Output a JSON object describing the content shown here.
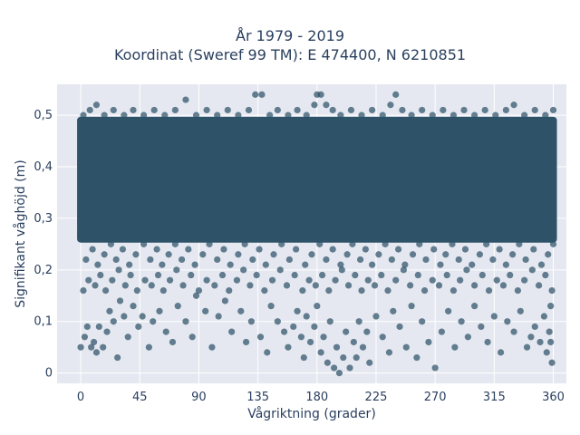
{
  "chart_data": {
    "type": "scatter",
    "title": "År 1979 - 2019",
    "subtitle": "Koordinat (Sweref 99 TM): E 474400, N 6210851",
    "xlabel": "Vågriktning (grader)",
    "ylabel": "Signifikant våghöjd (m)",
    "xlim": [
      -18,
      370
    ],
    "ylim": [
      -0.02,
      0.56
    ],
    "xticks": [
      0,
      45,
      90,
      135,
      180,
      225,
      270,
      315,
      360
    ],
    "xtick_labels": [
      "0",
      "45",
      "90",
      "135",
      "180",
      "225",
      "270",
      "315",
      "360"
    ],
    "yticks": [
      0,
      0.1,
      0.2,
      0.3,
      0.4,
      0.5
    ],
    "ytick_labels": [
      "0",
      "0,1",
      "0,2",
      "0,3",
      "0,4",
      "0,5"
    ],
    "grid": true,
    "legend": false,
    "marker_color": "#2e5268",
    "plot_background": "#e5e8f0",
    "dense_band": {
      "x": [
        0,
        360
      ],
      "y": [
        0.26,
        0.49
      ]
    },
    "points": [
      [
        0,
        0.05
      ],
      [
        3,
        0.07
      ],
      [
        5,
        0.09
      ],
      [
        8,
        0.05
      ],
      [
        10,
        0.06
      ],
      [
        12,
        0.04
      ],
      [
        14,
        0.09
      ],
      [
        17,
        0.05
      ],
      [
        20,
        0.08
      ],
      [
        22,
        0.12
      ],
      [
        25,
        0.1
      ],
      [
        28,
        0.03
      ],
      [
        30,
        0.14
      ],
      [
        33,
        0.11
      ],
      [
        36,
        0.07
      ],
      [
        40,
        0.13
      ],
      [
        44,
        0.09
      ],
      [
        47,
        0.11
      ],
      [
        52,
        0.05
      ],
      [
        55,
        0.1
      ],
      [
        60,
        0.12
      ],
      [
        65,
        0.08
      ],
      [
        70,
        0.06
      ],
      [
        74,
        0.13
      ],
      [
        80,
        0.1
      ],
      [
        85,
        0.07
      ],
      [
        88,
        0.15
      ],
      [
        95,
        0.12
      ],
      [
        100,
        0.05
      ],
      [
        105,
        0.11
      ],
      [
        110,
        0.14
      ],
      [
        115,
        0.08
      ],
      [
        122,
        0.12
      ],
      [
        126,
        0.06
      ],
      [
        130,
        0.1
      ],
      [
        137,
        0.07
      ],
      [
        142,
        0.04
      ],
      [
        145,
        0.13
      ],
      [
        150,
        0.1
      ],
      [
        155,
        0.08
      ],
      [
        158,
        0.05
      ],
      [
        162,
        0.09
      ],
      [
        165,
        0.12
      ],
      [
        168,
        0.07
      ],
      [
        170,
        0.03
      ],
      [
        172,
        0.11
      ],
      [
        175,
        0.06
      ],
      [
        178,
        0.09
      ],
      [
        180,
        0.13
      ],
      [
        183,
        0.04
      ],
      [
        185,
        0.07
      ],
      [
        188,
        0.02
      ],
      [
        190,
        0.1
      ],
      [
        193,
        0.01
      ],
      [
        195,
        0.05
      ],
      [
        197,
        0.0
      ],
      [
        200,
        0.03
      ],
      [
        202,
        0.08
      ],
      [
        205,
        0.01
      ],
      [
        208,
        0.06
      ],
      [
        210,
        0.03
      ],
      [
        212,
        0.1
      ],
      [
        215,
        0.05
      ],
      [
        218,
        0.08
      ],
      [
        220,
        0.02
      ],
      [
        225,
        0.11
      ],
      [
        230,
        0.07
      ],
      [
        235,
        0.04
      ],
      [
        238,
        0.12
      ],
      [
        243,
        0.09
      ],
      [
        248,
        0.05
      ],
      [
        252,
        0.13
      ],
      [
        256,
        0.03
      ],
      [
        260,
        0.1
      ],
      [
        265,
        0.06
      ],
      [
        270,
        0.01
      ],
      [
        275,
        0.08
      ],
      [
        280,
        0.12
      ],
      [
        285,
        0.05
      ],
      [
        290,
        0.1
      ],
      [
        295,
        0.07
      ],
      [
        300,
        0.13
      ],
      [
        305,
        0.09
      ],
      [
        310,
        0.06
      ],
      [
        315,
        0.11
      ],
      [
        320,
        0.04
      ],
      [
        325,
        0.1
      ],
      [
        330,
        0.08
      ],
      [
        335,
        0.12
      ],
      [
        340,
        0.05
      ],
      [
        343,
        0.07
      ],
      [
        346,
        0.09
      ],
      [
        350,
        0.06
      ],
      [
        353,
        0.11
      ],
      [
        355,
        0.04
      ],
      [
        357,
        0.08
      ],
      [
        358,
        0.06
      ],
      [
        359,
        0.02
      ],
      [
        358,
        0.13
      ],
      [
        2,
        0.16
      ],
      [
        6,
        0.18
      ],
      [
        11,
        0.17
      ],
      [
        15,
        0.19
      ],
      [
        19,
        0.16
      ],
      [
        24,
        0.18
      ],
      [
        29,
        0.2
      ],
      [
        34,
        0.17
      ],
      [
        38,
        0.19
      ],
      [
        43,
        0.16
      ],
      [
        49,
        0.18
      ],
      [
        54,
        0.17
      ],
      [
        59,
        0.19
      ],
      [
        63,
        0.16
      ],
      [
        68,
        0.18
      ],
      [
        73,
        0.2
      ],
      [
        78,
        0.17
      ],
      [
        84,
        0.19
      ],
      [
        90,
        0.16
      ],
      [
        96,
        0.18
      ],
      [
        102,
        0.17
      ],
      [
        108,
        0.19
      ],
      [
        113,
        0.16
      ],
      [
        119,
        0.18
      ],
      [
        124,
        0.2
      ],
      [
        129,
        0.17
      ],
      [
        134,
        0.19
      ],
      [
        140,
        0.16
      ],
      [
        146,
        0.18
      ],
      [
        152,
        0.2
      ],
      [
        157,
        0.17
      ],
      [
        163,
        0.19
      ],
      [
        169,
        0.16
      ],
      [
        174,
        0.18
      ],
      [
        179,
        0.17
      ],
      [
        184,
        0.19
      ],
      [
        189,
        0.16
      ],
      [
        194,
        0.18
      ],
      [
        199,
        0.2
      ],
      [
        204,
        0.17
      ],
      [
        209,
        0.19
      ],
      [
        214,
        0.16
      ],
      [
        219,
        0.18
      ],
      [
        224,
        0.17
      ],
      [
        229,
        0.19
      ],
      [
        234,
        0.16
      ],
      [
        240,
        0.18
      ],
      [
        246,
        0.2
      ],
      [
        251,
        0.17
      ],
      [
        257,
        0.19
      ],
      [
        262,
        0.16
      ],
      [
        268,
        0.18
      ],
      [
        273,
        0.17
      ],
      [
        279,
        0.19
      ],
      [
        284,
        0.16
      ],
      [
        289,
        0.18
      ],
      [
        294,
        0.2
      ],
      [
        300,
        0.17
      ],
      [
        306,
        0.19
      ],
      [
        311,
        0.16
      ],
      [
        317,
        0.18
      ],
      [
        322,
        0.17
      ],
      [
        327,
        0.19
      ],
      [
        333,
        0.16
      ],
      [
        338,
        0.18
      ],
      [
        344,
        0.2
      ],
      [
        349,
        0.17
      ],
      [
        354,
        0.19
      ],
      [
        359,
        0.16
      ],
      [
        4,
        0.22
      ],
      [
        9,
        0.24
      ],
      [
        13,
        0.21
      ],
      [
        18,
        0.23
      ],
      [
        23,
        0.25
      ],
      [
        27,
        0.22
      ],
      [
        32,
        0.24
      ],
      [
        37,
        0.21
      ],
      [
        42,
        0.23
      ],
      [
        48,
        0.25
      ],
      [
        53,
        0.22
      ],
      [
        58,
        0.24
      ],
      [
        62,
        0.21
      ],
      [
        67,
        0.23
      ],
      [
        72,
        0.25
      ],
      [
        77,
        0.22
      ],
      [
        82,
        0.24
      ],
      [
        87,
        0.21
      ],
      [
        93,
        0.23
      ],
      [
        98,
        0.25
      ],
      [
        104,
        0.22
      ],
      [
        109,
        0.24
      ],
      [
        114,
        0.21
      ],
      [
        120,
        0.23
      ],
      [
        125,
        0.25
      ],
      [
        131,
        0.22
      ],
      [
        136,
        0.24
      ],
      [
        141,
        0.21
      ],
      [
        147,
        0.23
      ],
      [
        153,
        0.25
      ],
      [
        159,
        0.22
      ],
      [
        164,
        0.24
      ],
      [
        171,
        0.21
      ],
      [
        176,
        0.23
      ],
      [
        182,
        0.25
      ],
      [
        187,
        0.22
      ],
      [
        192,
        0.24
      ],
      [
        198,
        0.21
      ],
      [
        203,
        0.23
      ],
      [
        207,
        0.25
      ],
      [
        213,
        0.22
      ],
      [
        217,
        0.24
      ],
      [
        222,
        0.21
      ],
      [
        227,
        0.23
      ],
      [
        232,
        0.25
      ],
      [
        237,
        0.22
      ],
      [
        242,
        0.24
      ],
      [
        247,
        0.21
      ],
      [
        253,
        0.23
      ],
      [
        258,
        0.25
      ],
      [
        263,
        0.22
      ],
      [
        269,
        0.24
      ],
      [
        274,
        0.21
      ],
      [
        278,
        0.23
      ],
      [
        283,
        0.25
      ],
      [
        288,
        0.22
      ],
      [
        293,
        0.24
      ],
      [
        298,
        0.21
      ],
      [
        304,
        0.23
      ],
      [
        309,
        0.25
      ],
      [
        314,
        0.22
      ],
      [
        319,
        0.24
      ],
      [
        324,
        0.21
      ],
      [
        329,
        0.23
      ],
      [
        334,
        0.25
      ],
      [
        339,
        0.22
      ],
      [
        345,
        0.24
      ],
      [
        351,
        0.21
      ],
      [
        356,
        0.23
      ],
      [
        360,
        0.25
      ],
      [
        2,
        0.5
      ],
      [
        7,
        0.51
      ],
      [
        12,
        0.52
      ],
      [
        18,
        0.5
      ],
      [
        25,
        0.51
      ],
      [
        33,
        0.5
      ],
      [
        40,
        0.51
      ],
      [
        48,
        0.5
      ],
      [
        56,
        0.51
      ],
      [
        64,
        0.5
      ],
      [
        72,
        0.51
      ],
      [
        80,
        0.53
      ],
      [
        88,
        0.5
      ],
      [
        96,
        0.51
      ],
      [
        104,
        0.5
      ],
      [
        112,
        0.51
      ],
      [
        120,
        0.5
      ],
      [
        128,
        0.51
      ],
      [
        133,
        0.54
      ],
      [
        138,
        0.54
      ],
      [
        144,
        0.5
      ],
      [
        150,
        0.51
      ],
      [
        158,
        0.5
      ],
      [
        165,
        0.51
      ],
      [
        172,
        0.5
      ],
      [
        178,
        0.52
      ],
      [
        180,
        0.54
      ],
      [
        183,
        0.54
      ],
      [
        187,
        0.52
      ],
      [
        192,
        0.51
      ],
      [
        198,
        0.5
      ],
      [
        206,
        0.51
      ],
      [
        214,
        0.5
      ],
      [
        222,
        0.51
      ],
      [
        230,
        0.5
      ],
      [
        236,
        0.52
      ],
      [
        240,
        0.54
      ],
      [
        245,
        0.51
      ],
      [
        252,
        0.5
      ],
      [
        260,
        0.51
      ],
      [
        268,
        0.5
      ],
      [
        276,
        0.51
      ],
      [
        284,
        0.5
      ],
      [
        292,
        0.51
      ],
      [
        300,
        0.5
      ],
      [
        308,
        0.51
      ],
      [
        316,
        0.5
      ],
      [
        324,
        0.51
      ],
      [
        330,
        0.52
      ],
      [
        338,
        0.5
      ],
      [
        346,
        0.51
      ],
      [
        354,
        0.5
      ],
      [
        360,
        0.51
      ]
    ]
  }
}
